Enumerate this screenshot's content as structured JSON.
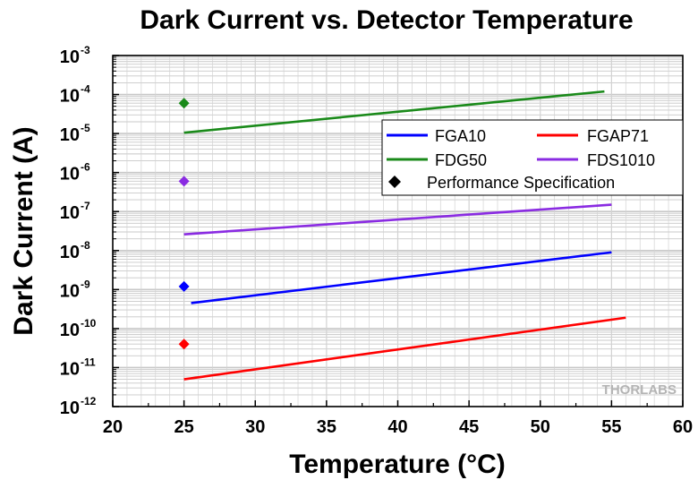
{
  "chart_data": {
    "type": "line",
    "title": "Dark Current vs. Detector Temperature",
    "xlabel": "Temperature (°C)",
    "ylabel": "Dark Current (A)",
    "xlim": [
      20,
      60
    ],
    "ylim_exponent": [
      -12,
      -3
    ],
    "y_scale": "log",
    "grid": true,
    "x_ticks": [
      "20",
      "25",
      "30",
      "35",
      "40",
      "45",
      "50",
      "55",
      "60"
    ],
    "y_ticks": [
      {
        "base": "10",
        "exp": "-12",
        "power": -12
      },
      {
        "base": "10",
        "exp": "-11",
        "power": -11
      },
      {
        "base": "10",
        "exp": "-10",
        "power": -10
      },
      {
        "base": "10",
        "exp": "-9",
        "power": -9
      },
      {
        "base": "10",
        "exp": "-8",
        "power": -8
      },
      {
        "base": "10",
        "exp": "-7",
        "power": -7
      },
      {
        "base": "10",
        "exp": "-6",
        "power": -6
      },
      {
        "base": "10",
        "exp": "-5",
        "power": -5
      },
      {
        "base": "10",
        "exp": "-4",
        "power": -4
      },
      {
        "base": "10",
        "exp": "-3",
        "power": -3
      }
    ],
    "series": [
      {
        "name": "FGA10",
        "color": "#0000ff",
        "x": [
          25.5,
          55
        ],
        "y": [
          4.5e-10,
          9e-09
        ]
      },
      {
        "name": "FGAP71",
        "color": "#ff0000",
        "x": [
          25,
          56
        ],
        "y": [
          5e-12,
          1.9e-10
        ]
      },
      {
        "name": "FDG50",
        "color": "#1a8a1a",
        "x": [
          25,
          54.5
        ],
        "y": [
          1.05e-05,
          0.00012
        ]
      },
      {
        "name": "FDS1010",
        "color": "#8a2be2",
        "x": [
          25,
          55
        ],
        "y": [
          2.6e-08,
          1.5e-07
        ]
      }
    ],
    "specifications": [
      {
        "series": "FDG50",
        "x": 25,
        "y": 6e-05,
        "color": "#1a8a1a"
      },
      {
        "series": "FDS1010",
        "x": 25,
        "y": 6e-07,
        "color": "#8a2be2"
      },
      {
        "series": "FGA10",
        "x": 25,
        "y": 1.2e-09,
        "color": "#0000ff"
      },
      {
        "series": "FGAP71",
        "x": 25,
        "y": 4e-11,
        "color": "#ff0000"
      }
    ],
    "legend": {
      "placement": "top-right",
      "spec_label": "Performance Specification"
    }
  },
  "watermark": "THORLABS"
}
